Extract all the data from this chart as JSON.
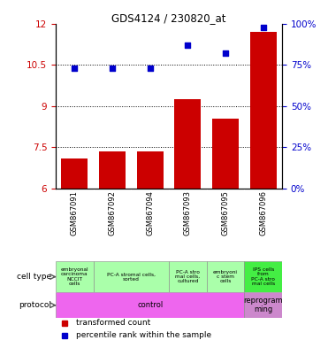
{
  "title": "GDS4124 / 230820_at",
  "samples": [
    "GSM867091",
    "GSM867092",
    "GSM867094",
    "GSM867093",
    "GSM867095",
    "GSM867096"
  ],
  "bar_values": [
    7.1,
    7.35,
    7.35,
    9.25,
    8.55,
    11.7
  ],
  "dot_values": [
    73,
    73,
    73,
    87,
    82,
    98
  ],
  "ylim_left": [
    6,
    12
  ],
  "ylim_right": [
    0,
    100
  ],
  "yticks_left": [
    6,
    7.5,
    9,
    10.5,
    12
  ],
  "yticks_right": [
    0,
    25,
    50,
    75,
    100
  ],
  "ytick_labels_left": [
    "6",
    "7.5",
    "9",
    "10.5",
    "12"
  ],
  "ytick_labels_right": [
    "0%",
    "25%",
    "50%",
    "75%",
    "100%"
  ],
  "hlines": [
    7.5,
    9,
    10.5
  ],
  "bar_color": "#cc0000",
  "dot_color": "#0000cc",
  "sample_bg_color": "#c0c0c0",
  "cell_types": [
    {
      "text": "embryonal\ncarcinoma\nNCCIT\ncells",
      "span": [
        0,
        1
      ],
      "color": "#aaffaa"
    },
    {
      "text": "PC-A stromal cells,\nsorted",
      "span": [
        1,
        3
      ],
      "color": "#aaffaa"
    },
    {
      "text": "PC-A stro\nmal cells,\ncultured",
      "span": [
        3,
        4
      ],
      "color": "#aaffaa"
    },
    {
      "text": "embryoni\nc stem\ncells",
      "span": [
        4,
        5
      ],
      "color": "#aaffaa"
    },
    {
      "text": "IPS cells\nfrom\nPC-A stro\nmal cells",
      "span": [
        5,
        6
      ],
      "color": "#44ee44"
    }
  ],
  "protocols": [
    {
      "text": "control",
      "span": [
        0,
        5
      ],
      "color": "#ee66ee"
    },
    {
      "text": "reprogram\nming",
      "span": [
        5,
        6
      ],
      "color": "#cc88cc"
    }
  ],
  "tick_label_color_left": "#cc0000",
  "tick_label_color_right": "#0000cc",
  "bg_color": "#ffffff",
  "cell_type_label": "cell type",
  "protocol_label": "protocol",
  "legend_items": [
    {
      "label": "transformed count",
      "color": "#cc0000"
    },
    {
      "label": "percentile rank within the sample",
      "color": "#0000cc"
    }
  ]
}
